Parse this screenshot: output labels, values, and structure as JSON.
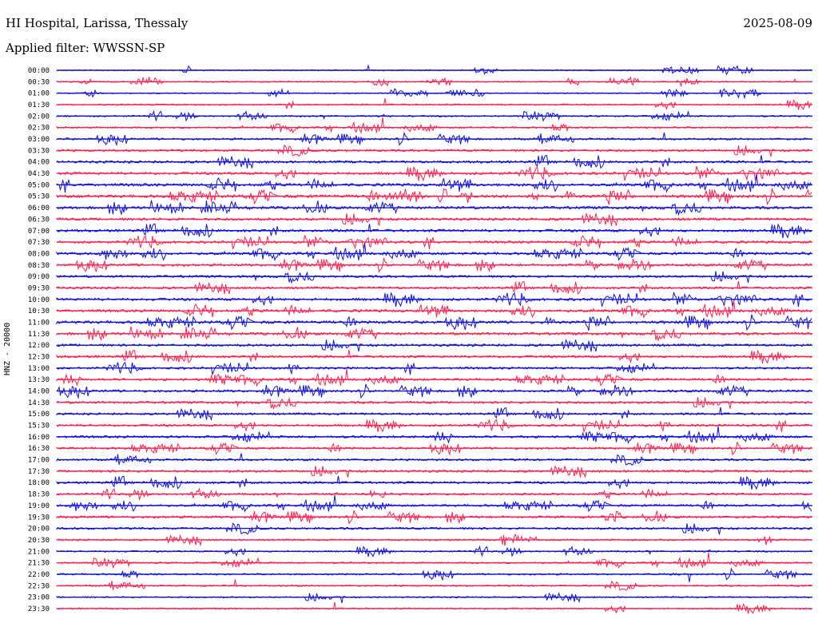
{
  "header": {
    "station": "HI Hospital, Larissa, Thessaly",
    "date": "2025-08-09",
    "filter": "Applied filter: WWSSN-SP"
  },
  "colors": {
    "blue": "#1010e0",
    "red": "#ff2050"
  },
  "chart_data": {
    "type": "line",
    "title": "HI Hospital, Larissa, Thessaly",
    "subtitle": "Applied filter: WWSSN-SP",
    "ylabel": "HNZ - 20000",
    "grid": false,
    "rows": [
      {
        "time": "00:00",
        "color": "blue",
        "activity": 0.05
      },
      {
        "time": "00:30",
        "color": "red",
        "activity": 0.1
      },
      {
        "time": "01:00",
        "color": "blue",
        "activity": 0.05
      },
      {
        "time": "01:30",
        "color": "red",
        "activity": 0.15
      },
      {
        "time": "02:00",
        "color": "blue",
        "activity": 0.2
      },
      {
        "time": "02:30",
        "color": "red",
        "activity": 0.25
      },
      {
        "time": "03:00",
        "color": "blue",
        "activity": 0.35
      },
      {
        "time": "03:30",
        "color": "red",
        "activity": 0.4
      },
      {
        "time": "04:00",
        "color": "blue",
        "activity": 0.5
      },
      {
        "time": "04:30",
        "color": "red",
        "activity": 0.55
      },
      {
        "time": "05:00",
        "color": "blue",
        "activity": 0.6
      },
      {
        "time": "05:30",
        "color": "red",
        "activity": 0.7
      },
      {
        "time": "06:00",
        "color": "blue",
        "activity": 0.6
      },
      {
        "time": "06:30",
        "color": "red",
        "activity": 0.55
      },
      {
        "time": "07:00",
        "color": "blue",
        "activity": 0.55
      },
      {
        "time": "07:30",
        "color": "red",
        "activity": 0.5
      },
      {
        "time": "08:00",
        "color": "blue",
        "activity": 0.55
      },
      {
        "time": "08:30",
        "color": "red",
        "activity": 0.5
      },
      {
        "time": "09:00",
        "color": "blue",
        "activity": 0.45
      },
      {
        "time": "09:30",
        "color": "red",
        "activity": 0.45
      },
      {
        "time": "10:00",
        "color": "blue",
        "activity": 0.55
      },
      {
        "time": "10:30",
        "color": "red",
        "activity": 0.55
      },
      {
        "time": "11:00",
        "color": "blue",
        "activity": 0.65
      },
      {
        "time": "11:30",
        "color": "red",
        "activity": 0.55
      },
      {
        "time": "12:00",
        "color": "blue",
        "activity": 0.5
      },
      {
        "time": "12:30",
        "color": "red",
        "activity": 0.45
      },
      {
        "time": "13:00",
        "color": "blue",
        "activity": 0.4
      },
      {
        "time": "13:30",
        "color": "red",
        "activity": 0.45
      },
      {
        "time": "14:00",
        "color": "blue",
        "activity": 0.5
      },
      {
        "time": "14:30",
        "color": "red",
        "activity": 0.45
      },
      {
        "time": "15:00",
        "color": "blue",
        "activity": 0.4
      },
      {
        "time": "15:30",
        "color": "red",
        "activity": 0.4
      },
      {
        "time": "16:00",
        "color": "blue",
        "activity": 0.45
      },
      {
        "time": "16:30",
        "color": "red",
        "activity": 0.4
      },
      {
        "time": "17:00",
        "color": "blue",
        "activity": 0.35
      },
      {
        "time": "17:30",
        "color": "red",
        "activity": 0.45
      },
      {
        "time": "18:00",
        "color": "blue",
        "activity": 0.45
      },
      {
        "time": "18:30",
        "color": "red",
        "activity": 0.35
      },
      {
        "time": "19:00",
        "color": "blue",
        "activity": 0.4
      },
      {
        "time": "19:30",
        "color": "red",
        "activity": 0.45
      },
      {
        "time": "20:00",
        "color": "blue",
        "activity": 0.4
      },
      {
        "time": "20:30",
        "color": "red",
        "activity": 0.25
      },
      {
        "time": "21:00",
        "color": "blue",
        "activity": 0.2
      },
      {
        "time": "21:30",
        "color": "red",
        "activity": 0.2
      },
      {
        "time": "22:00",
        "color": "blue",
        "activity": 0.25
      },
      {
        "time": "22:30",
        "color": "red",
        "activity": 0.2
      },
      {
        "time": "23:00",
        "color": "blue",
        "activity": 0.15
      },
      {
        "time": "23:30",
        "color": "red",
        "activity": 0.15
      }
    ]
  }
}
